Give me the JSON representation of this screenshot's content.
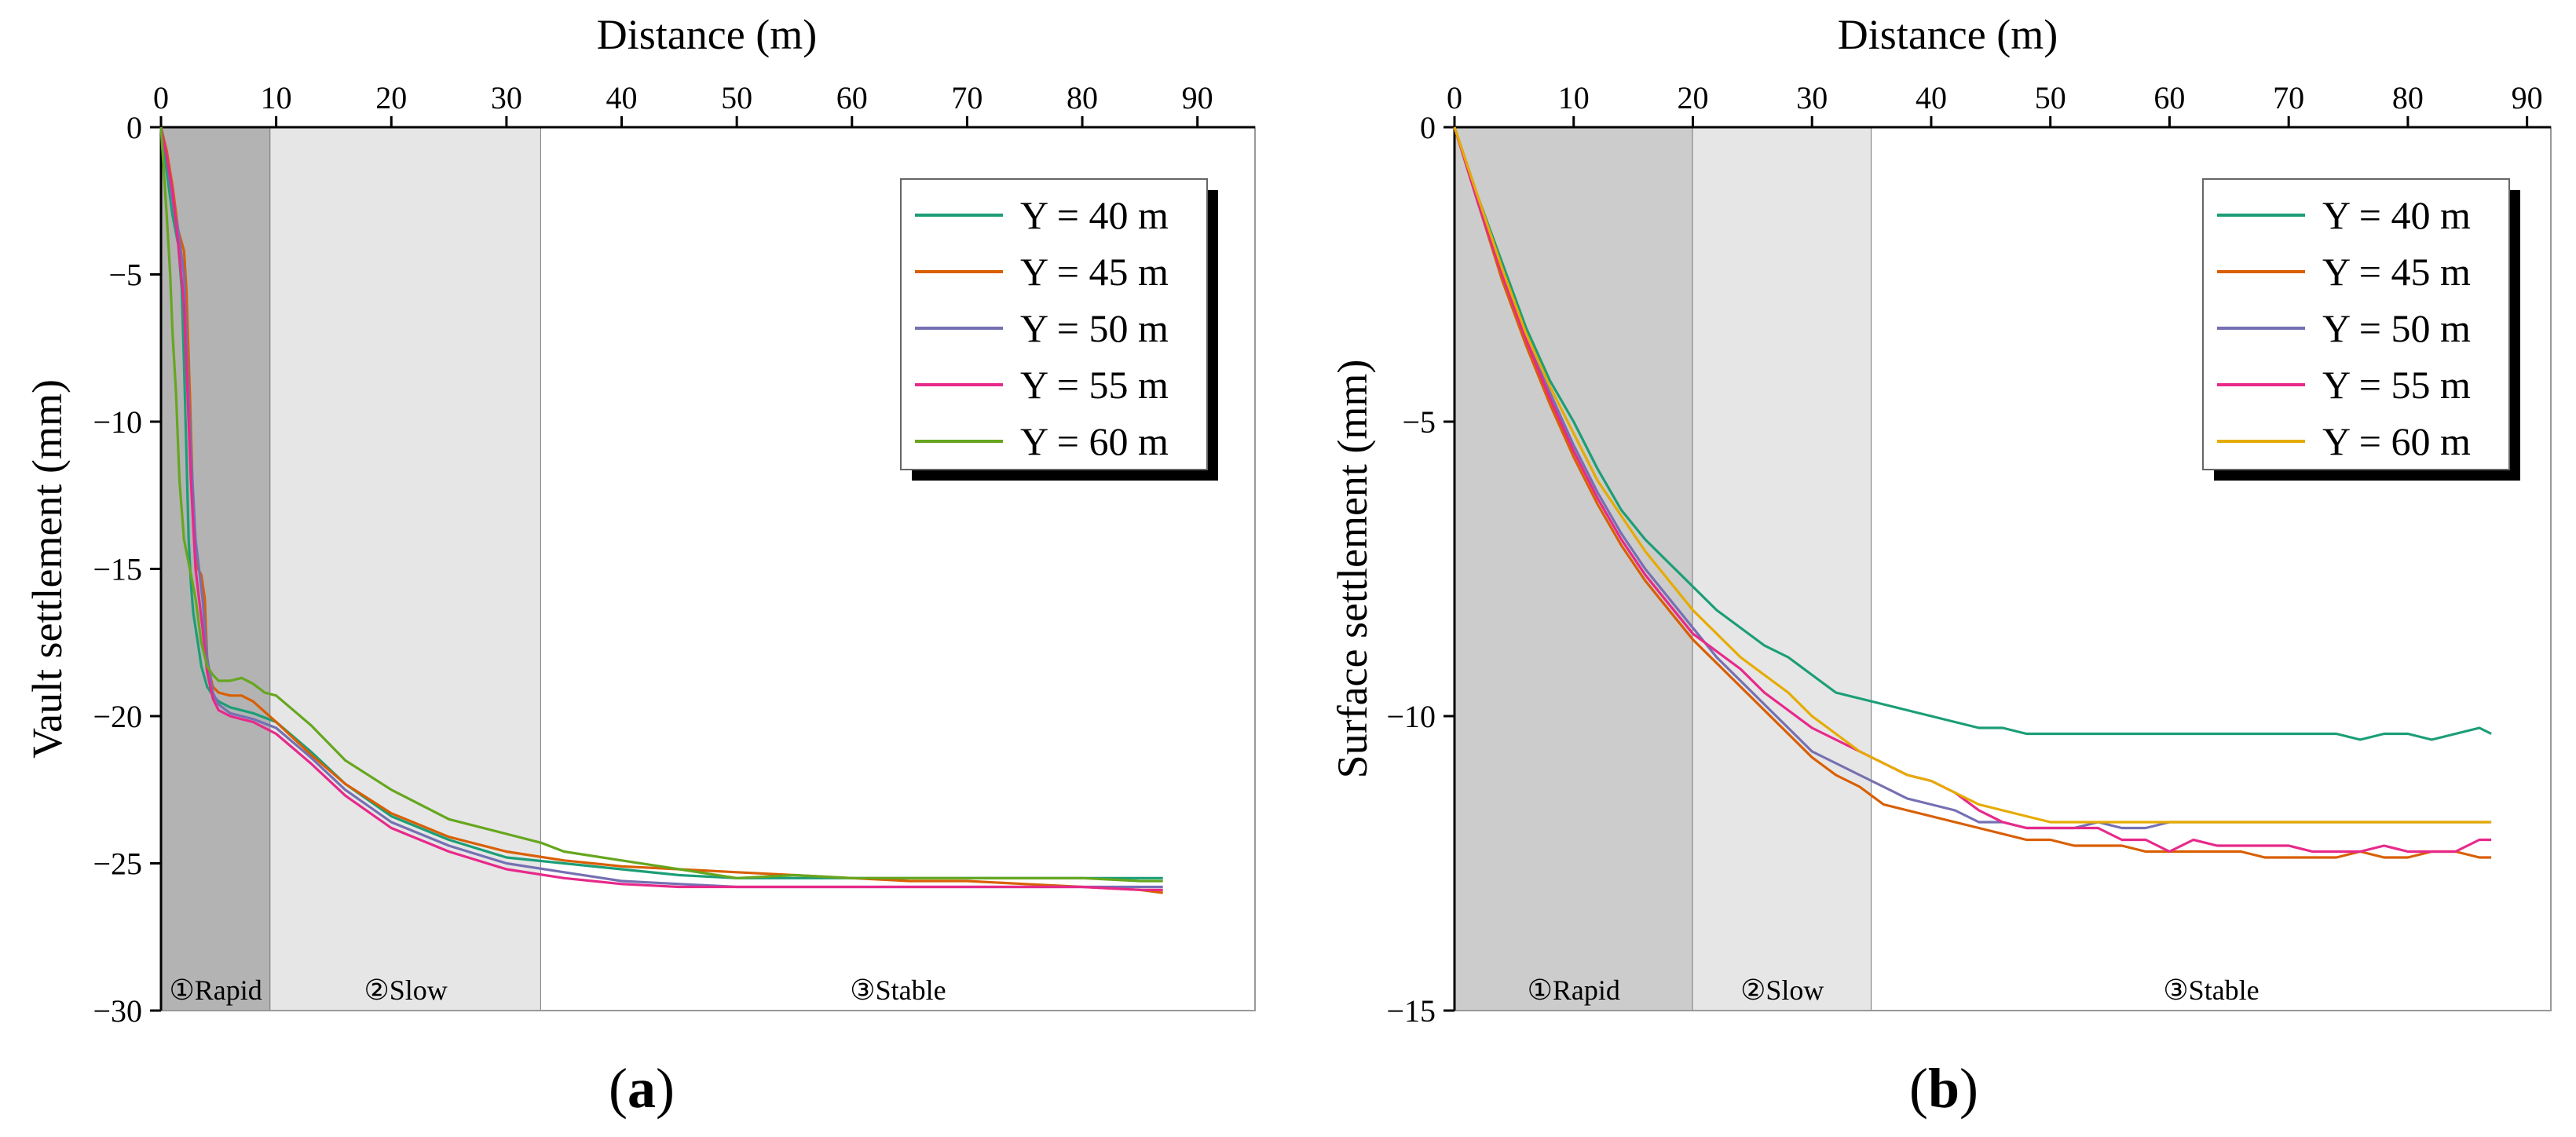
{
  "figure": {
    "panels": [
      {
        "id": "a",
        "panel_label_text": "(a)",
        "panel_label_bold": "a"
      },
      {
        "id": "b",
        "panel_label_text": "(b)",
        "panel_label_bold": "b"
      }
    ]
  },
  "chart_data": [
    {
      "type": "line",
      "xlabel": "Distance (m)",
      "ylabel": "Vault settlement (mm)",
      "xlim": [
        0,
        95
      ],
      "ylim": [
        -30,
        0
      ],
      "x_ticks": [
        0,
        10,
        20,
        30,
        40,
        50,
        60,
        70,
        80,
        90
      ],
      "y_ticks": [
        0,
        -5,
        -10,
        -15,
        -20,
        -25,
        -30
      ],
      "x_axis_position": "top",
      "grid": false,
      "legend_position": "top-right",
      "phases": [
        {
          "label": "①Rapid",
          "x_range": [
            0,
            9.5
          ],
          "color": "#b3b3b3"
        },
        {
          "label": "②Slow",
          "x_range": [
            9.5,
            33
          ],
          "color": "#e6e6e6"
        },
        {
          "label": "③Stable",
          "x_range": [
            33,
            95
          ],
          "color": "#ffffff"
        }
      ],
      "series": [
        {
          "name": "Y = 40 m",
          "color": "#1b9e77",
          "x": [
            0,
            0.5,
            1,
            1.5,
            1.8,
            2.0,
            2.2,
            2.4,
            2.6,
            2.8,
            3.0,
            3.2,
            3.5,
            4,
            4.5,
            5,
            6,
            8,
            10,
            13,
            16,
            20,
            25,
            30,
            35,
            40,
            45,
            50,
            55,
            60,
            65,
            70,
            75,
            80,
            85,
            87
          ],
          "y": [
            0,
            -1.5,
            -3,
            -4,
            -5.5,
            -8,
            -11,
            -14,
            -15.5,
            -16.5,
            -17,
            -17.5,
            -18.3,
            -19,
            -19.3,
            -19.5,
            -19.7,
            -19.9,
            -20.2,
            -21.2,
            -22.3,
            -23.4,
            -24.2,
            -24.8,
            -25.0,
            -25.2,
            -25.4,
            -25.5,
            -25.5,
            -25.5,
            -25.5,
            -25.5,
            -25.5,
            -25.5,
            -25.5,
            -25.5
          ]
        },
        {
          "name": "Y = 45 m",
          "color": "#d95f02",
          "x": [
            0,
            0.5,
            1,
            1.5,
            2,
            2.2,
            2.5,
            2.8,
            3,
            3.2,
            3.5,
            3.8,
            4,
            4.2,
            4.5,
            5,
            6,
            7,
            8,
            10,
            13,
            16,
            20,
            25,
            30,
            35,
            40,
            45,
            50,
            55,
            60,
            65,
            70,
            75,
            80,
            85,
            87
          ],
          "y": [
            0,
            -0.8,
            -2,
            -3.5,
            -4.2,
            -5.5,
            -9,
            -13,
            -14.5,
            -15,
            -15.2,
            -16,
            -18,
            -18.5,
            -19,
            -19.2,
            -19.3,
            -19.3,
            -19.5,
            -20.2,
            -21.3,
            -22.3,
            -23.3,
            -24.1,
            -24.6,
            -24.9,
            -25.1,
            -25.2,
            -25.3,
            -25.4,
            -25.5,
            -25.6,
            -25.6,
            -25.7,
            -25.8,
            -25.9,
            -26.0
          ]
        },
        {
          "name": "Y = 50 m",
          "color": "#7570b3",
          "x": [
            0,
            0.5,
            1,
            1.5,
            2,
            2.3,
            2.6,
            3,
            3.3,
            3.6,
            4,
            4.5,
            5,
            6,
            7,
            8,
            10,
            13,
            16,
            20,
            25,
            30,
            35,
            40,
            45,
            50,
            55,
            60,
            65,
            70,
            75,
            80,
            85,
            87
          ],
          "y": [
            0,
            -1,
            -2.5,
            -3.5,
            -5,
            -8,
            -11,
            -14,
            -15,
            -16,
            -18,
            -19.2,
            -19.6,
            -19.9,
            -20,
            -20.1,
            -20.4,
            -21.4,
            -22.5,
            -23.6,
            -24.4,
            -25.0,
            -25.3,
            -25.6,
            -25.7,
            -25.8,
            -25.8,
            -25.8,
            -25.8,
            -25.8,
            -25.8,
            -25.8,
            -25.8,
            -25.8
          ]
        },
        {
          "name": "Y = 55 m",
          "color": "#e7298a",
          "x": [
            0,
            0.5,
            1,
            1.5,
            2,
            2.3,
            2.6,
            3,
            3.3,
            3.6,
            4,
            4.5,
            5,
            6,
            7,
            8,
            10,
            13,
            16,
            20,
            25,
            30,
            35,
            40,
            45,
            50,
            55,
            60,
            65,
            70,
            75,
            80,
            85,
            87
          ],
          "y": [
            0,
            -1,
            -2.2,
            -4,
            -6,
            -9,
            -12,
            -15,
            -16,
            -17,
            -18.5,
            -19.4,
            -19.8,
            -20,
            -20.1,
            -20.2,
            -20.6,
            -21.6,
            -22.7,
            -23.8,
            -24.6,
            -25.2,
            -25.5,
            -25.7,
            -25.8,
            -25.8,
            -25.8,
            -25.8,
            -25.8,
            -25.8,
            -25.8,
            -25.8,
            -25.9,
            -25.9
          ]
        },
        {
          "name": "Y = 60 m",
          "color": "#66a61e",
          "x": [
            0,
            0.5,
            0.8,
            1,
            1.3,
            1.6,
            2,
            2.5,
            3,
            3.5,
            4,
            4.5,
            5,
            6,
            7,
            8,
            9,
            10,
            13,
            16,
            20,
            25,
            30,
            33,
            35,
            40,
            45,
            50,
            55,
            60,
            65,
            70,
            75,
            80,
            85,
            87
          ],
          "y": [
            0,
            -3,
            -5,
            -7,
            -9,
            -12,
            -14,
            -15,
            -16,
            -17.5,
            -18.3,
            -18.6,
            -18.8,
            -18.8,
            -18.7,
            -18.9,
            -19.2,
            -19.3,
            -20.3,
            -21.5,
            -22.5,
            -23.5,
            -24.0,
            -24.3,
            -24.6,
            -24.9,
            -25.2,
            -25.5,
            -25.4,
            -25.5,
            -25.5,
            -25.5,
            -25.5,
            -25.5,
            -25.6,
            -25.6
          ]
        }
      ]
    },
    {
      "type": "line",
      "xlabel": "Distance (m)",
      "ylabel": "Surface settlement (mm)",
      "xlim": [
        0,
        92
      ],
      "ylim": [
        -15,
        0
      ],
      "x_ticks": [
        0,
        10,
        20,
        30,
        40,
        50,
        60,
        70,
        80,
        90
      ],
      "y_ticks": [
        0,
        -5,
        -10,
        -15
      ],
      "x_axis_position": "top",
      "grid": false,
      "legend_position": "top-right",
      "phases": [
        {
          "label": "①Rapid",
          "x_range": [
            0,
            20
          ],
          "color": "#cccccc"
        },
        {
          "label": "②Slow",
          "x_range": [
            20,
            35
          ],
          "color": "#e6e6e6"
        },
        {
          "label": "③Stable",
          "x_range": [
            35,
            92
          ],
          "color": "#ffffff"
        }
      ],
      "series": [
        {
          "name": "Y = 40 m",
          "color": "#1b9e77",
          "x": [
            0,
            2,
            4,
            6,
            8,
            10,
            12,
            14,
            16,
            18,
            20,
            22,
            24,
            26,
            28,
            30,
            32,
            34,
            36,
            38,
            40,
            42,
            44,
            46,
            48,
            50,
            52,
            54,
            56,
            58,
            60,
            62,
            64,
            66,
            68,
            70,
            72,
            74,
            76,
            78,
            80,
            82,
            84,
            86,
            87
          ],
          "y": [
            0,
            -1.2,
            -2.3,
            -3.4,
            -4.3,
            -5.0,
            -5.8,
            -6.5,
            -7.0,
            -7.4,
            -7.8,
            -8.2,
            -8.5,
            -8.8,
            -9.0,
            -9.3,
            -9.6,
            -9.7,
            -9.8,
            -9.9,
            -10.0,
            -10.1,
            -10.2,
            -10.2,
            -10.3,
            -10.3,
            -10.3,
            -10.3,
            -10.3,
            -10.3,
            -10.3,
            -10.3,
            -10.3,
            -10.3,
            -10.3,
            -10.3,
            -10.3,
            -10.3,
            -10.4,
            -10.3,
            -10.3,
            -10.4,
            -10.3,
            -10.2,
            -10.3
          ]
        },
        {
          "name": "Y = 45 m",
          "color": "#d95f02",
          "x": [
            0,
            2,
            4,
            6,
            8,
            10,
            12,
            14,
            16,
            18,
            20,
            22,
            24,
            26,
            28,
            30,
            32,
            34,
            36,
            38,
            40,
            42,
            44,
            46,
            48,
            50,
            52,
            54,
            56,
            58,
            60,
            62,
            64,
            66,
            68,
            70,
            72,
            74,
            76,
            78,
            80,
            82,
            84,
            86,
            87
          ],
          "y": [
            0,
            -1.3,
            -2.6,
            -3.7,
            -4.7,
            -5.6,
            -6.4,
            -7.1,
            -7.7,
            -8.2,
            -8.7,
            -9.1,
            -9.5,
            -9.9,
            -10.3,
            -10.7,
            -11.0,
            -11.2,
            -11.5,
            -11.6,
            -11.7,
            -11.8,
            -11.9,
            -12.0,
            -12.1,
            -12.1,
            -12.2,
            -12.2,
            -12.2,
            -12.3,
            -12.3,
            -12.3,
            -12.3,
            -12.3,
            -12.4,
            -12.4,
            -12.4,
            -12.4,
            -12.3,
            -12.4,
            -12.4,
            -12.3,
            -12.3,
            -12.4,
            -12.4
          ]
        },
        {
          "name": "Y = 50 m",
          "color": "#7570b3",
          "x": [
            0,
            2,
            4,
            6,
            8,
            10,
            12,
            14,
            16,
            18,
            20,
            22,
            24,
            26,
            28,
            30,
            32,
            34,
            36,
            38,
            40,
            42,
            44,
            46,
            48,
            50,
            52,
            54,
            56,
            58,
            60,
            62,
            64,
            66,
            68,
            70,
            72,
            74,
            76,
            78,
            80,
            82,
            84,
            86,
            87
          ],
          "y": [
            0,
            -1.3,
            -2.5,
            -3.6,
            -4.5,
            -5.4,
            -6.2,
            -6.9,
            -7.5,
            -8.0,
            -8.5,
            -9.0,
            -9.4,
            -9.8,
            -10.2,
            -10.6,
            -10.8,
            -11.0,
            -11.2,
            -11.4,
            -11.5,
            -11.6,
            -11.8,
            -11.8,
            -11.9,
            -11.9,
            -11.9,
            -11.8,
            -11.9,
            -11.9,
            -11.8,
            -11.8,
            -11.8,
            -11.8,
            -11.8,
            -11.8,
            -11.8,
            -11.8,
            -11.8,
            -11.8,
            -11.8,
            -11.8,
            -11.8,
            -11.8,
            -11.8
          ]
        },
        {
          "name": "Y = 55 m",
          "color": "#e7298a",
          "x": [
            0,
            2,
            4,
            6,
            8,
            10,
            12,
            14,
            16,
            18,
            20,
            22,
            24,
            26,
            28,
            30,
            32,
            34,
            36,
            38,
            40,
            42,
            44,
            46,
            48,
            50,
            52,
            54,
            56,
            58,
            60,
            62,
            64,
            66,
            68,
            70,
            72,
            74,
            76,
            78,
            80,
            82,
            84,
            86,
            87
          ],
          "y": [
            0,
            -1.3,
            -2.5,
            -3.6,
            -4.6,
            -5.5,
            -6.3,
            -7.0,
            -7.6,
            -8.1,
            -8.6,
            -8.9,
            -9.2,
            -9.6,
            -9.9,
            -10.2,
            -10.4,
            -10.6,
            -10.8,
            -11.0,
            -11.1,
            -11.3,
            -11.6,
            -11.8,
            -11.9,
            -11.9,
            -11.9,
            -11.9,
            -12.1,
            -12.1,
            -12.3,
            -12.1,
            -12.2,
            -12.2,
            -12.2,
            -12.2,
            -12.3,
            -12.3,
            -12.3,
            -12.2,
            -12.3,
            -12.3,
            -12.3,
            -12.1,
            -12.1
          ]
        },
        {
          "name": "Y = 60 m",
          "color": "#e6ab02",
          "x": [
            0,
            2,
            4,
            6,
            8,
            10,
            12,
            14,
            16,
            18,
            20,
            22,
            24,
            26,
            28,
            30,
            32,
            34,
            36,
            38,
            40,
            42,
            44,
            46,
            48,
            50,
            52,
            54,
            56,
            58,
            60,
            62,
            64,
            66,
            68,
            70,
            72,
            74,
            76,
            78,
            80,
            82,
            84,
            86,
            87
          ],
          "y": [
            0,
            -1.2,
            -2.4,
            -3.5,
            -4.4,
            -5.2,
            -6.0,
            -6.6,
            -7.2,
            -7.7,
            -8.2,
            -8.6,
            -9.0,
            -9.3,
            -9.6,
            -10.0,
            -10.3,
            -10.6,
            -10.8,
            -11.0,
            -11.1,
            -11.3,
            -11.5,
            -11.6,
            -11.7,
            -11.8,
            -11.8,
            -11.8,
            -11.8,
            -11.8,
            -11.8,
            -11.8,
            -11.8,
            -11.8,
            -11.8,
            -11.8,
            -11.8,
            -11.8,
            -11.8,
            -11.8,
            -11.8,
            -11.8,
            -11.8,
            -11.8,
            -11.8
          ]
        }
      ]
    }
  ]
}
